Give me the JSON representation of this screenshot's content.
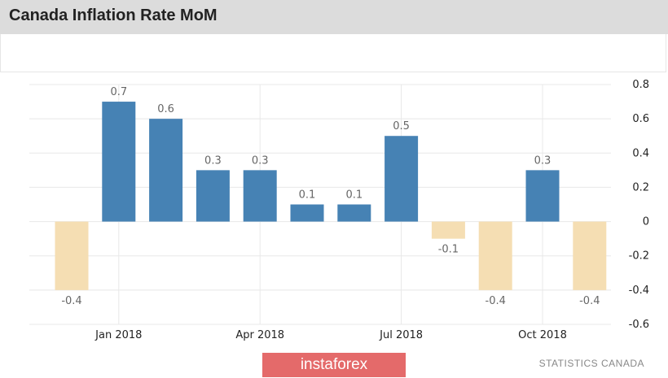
{
  "header": {
    "title": "Canada Inflation Rate MoM"
  },
  "footer": {
    "brand": "instaforex",
    "source": "STATISTICS CANADA"
  },
  "colors": {
    "positive_bar": "#4682b4",
    "negative_bar": "#f5deb3",
    "grid": "#e8e8e8",
    "tick_text": "#222222",
    "label_text": "#666666",
    "title_bar": "#dcdcdc",
    "brand_bg": "#e46a6a"
  },
  "chart_data": {
    "type": "bar",
    "categories": [
      "Dec 2017",
      "Jan 2018",
      "Feb 2018",
      "Mar 2018",
      "Apr 2018",
      "May 2018",
      "Jun 2018",
      "Jul 2018",
      "Aug 2018",
      "Sep 2018",
      "Oct 2018",
      "Nov 2018"
    ],
    "values": [
      -0.4,
      0.7,
      0.6,
      0.3,
      0.3,
      0.1,
      0.1,
      0.5,
      -0.1,
      -0.4,
      0.3,
      -0.4
    ],
    "data_labels": [
      "-0.4",
      "0.7",
      "0.6",
      "0.3",
      "0.3",
      "0.1",
      "0.1",
      "0.5",
      "-0.1",
      "-0.4",
      "0.3",
      "-0.4"
    ],
    "x_tick_labels": [
      {
        "category": "Jan 2018",
        "label": "Jan 2018"
      },
      {
        "category": "Apr 2018",
        "label": "Apr 2018"
      },
      {
        "category": "Jul 2018",
        "label": "Jul 2018"
      },
      {
        "category": "Oct 2018",
        "label": "Oct 2018"
      }
    ],
    "y_ticks": [
      0.8,
      0.6,
      0.4,
      0.2,
      0,
      -0.2,
      -0.4,
      -0.6
    ],
    "y_tick_labels": [
      "0.8",
      "0.6",
      "0.4",
      "0.2",
      "0",
      "-0.2",
      "-0.4",
      "-0.6"
    ],
    "ylim": [
      -0.6,
      0.8
    ],
    "y_axis_side": "right",
    "grid": true,
    "legend": "none",
    "title": "Canada Inflation Rate MoM",
    "xlabel": "",
    "ylabel": ""
  }
}
